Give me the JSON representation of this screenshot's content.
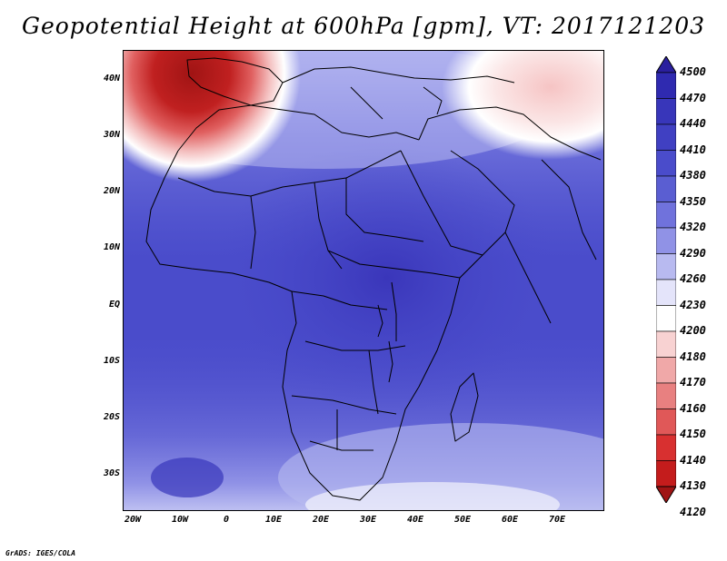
{
  "title": "Geopotential Height at 600hPa [gpm], VT: 2017121203",
  "credit": "GrADS: IGES/COLA",
  "lat_labels": [
    "40N",
    "30N",
    "20N",
    "10N",
    "EQ",
    "10S",
    "20S",
    "30S"
  ],
  "lon_labels": [
    "20W",
    "10W",
    "0",
    "10E",
    "20E",
    "30E",
    "40E",
    "50E",
    "60E",
    "70E"
  ],
  "colorbar": {
    "levels": [
      "4500",
      "4470",
      "4440",
      "4410",
      "4380",
      "4350",
      "4320",
      "4290",
      "4260",
      "4230",
      "4200",
      "4180",
      "4170",
      "4160",
      "4150",
      "4140",
      "4130",
      "4120"
    ],
    "colors": [
      "#2a1f9e",
      "#2f2ab0",
      "#3836ba",
      "#4040c2",
      "#4a4ccb",
      "#5a5ed2",
      "#7072dc",
      "#9092e6",
      "#b8baf0",
      "#e4e4fa",
      "#ffffff",
      "#f8d2d2",
      "#f0a8a8",
      "#e88080",
      "#e05858",
      "#d83030",
      "#c41c1c",
      "#a01414"
    ]
  }
}
